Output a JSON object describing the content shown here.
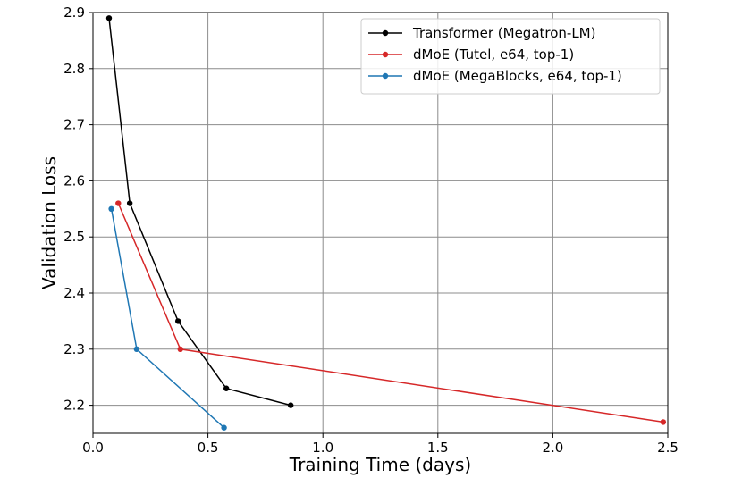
{
  "chart_data": {
    "type": "line",
    "title": "",
    "xlabel": "Training Time (days)",
    "ylabel": "Validation Loss",
    "xlim": [
      0.0,
      2.5
    ],
    "ylim": [
      2.15,
      2.9
    ],
    "xticks": [
      0.0,
      0.5,
      1.0,
      1.5,
      2.0,
      2.5
    ],
    "xtick_labels": [
      "0.0",
      "0.5",
      "1.0",
      "1.5",
      "2.0",
      "2.5"
    ],
    "yticks": [
      2.2,
      2.3,
      2.4,
      2.5,
      2.6,
      2.7,
      2.8,
      2.9
    ],
    "ytick_labels": [
      "2.2",
      "2.3",
      "2.4",
      "2.5",
      "2.6",
      "2.7",
      "2.8",
      "2.9"
    ],
    "grid": true,
    "legend_position": "top-right",
    "series": [
      {
        "name": "Transformer (Megatron-LM)",
        "color": "#000000",
        "points": [
          {
            "x": 0.07,
            "y": 2.89
          },
          {
            "x": 0.16,
            "y": 2.56
          },
          {
            "x": 0.37,
            "y": 2.35
          },
          {
            "x": 0.58,
            "y": 2.23
          },
          {
            "x": 0.86,
            "y": 2.2
          }
        ]
      },
      {
        "name": "dMoE (Tutel, e64, top-1)",
        "color": "#d62728",
        "points": [
          {
            "x": 0.11,
            "y": 2.56
          },
          {
            "x": 0.38,
            "y": 2.3
          },
          {
            "x": 2.48,
            "y": 2.17
          }
        ]
      },
      {
        "name": "dMoE (MegaBlocks, e64, top-1)",
        "color": "#1f77b4",
        "points": [
          {
            "x": 0.08,
            "y": 2.55
          },
          {
            "x": 0.19,
            "y": 2.3
          },
          {
            "x": 0.57,
            "y": 2.16
          }
        ]
      }
    ]
  }
}
